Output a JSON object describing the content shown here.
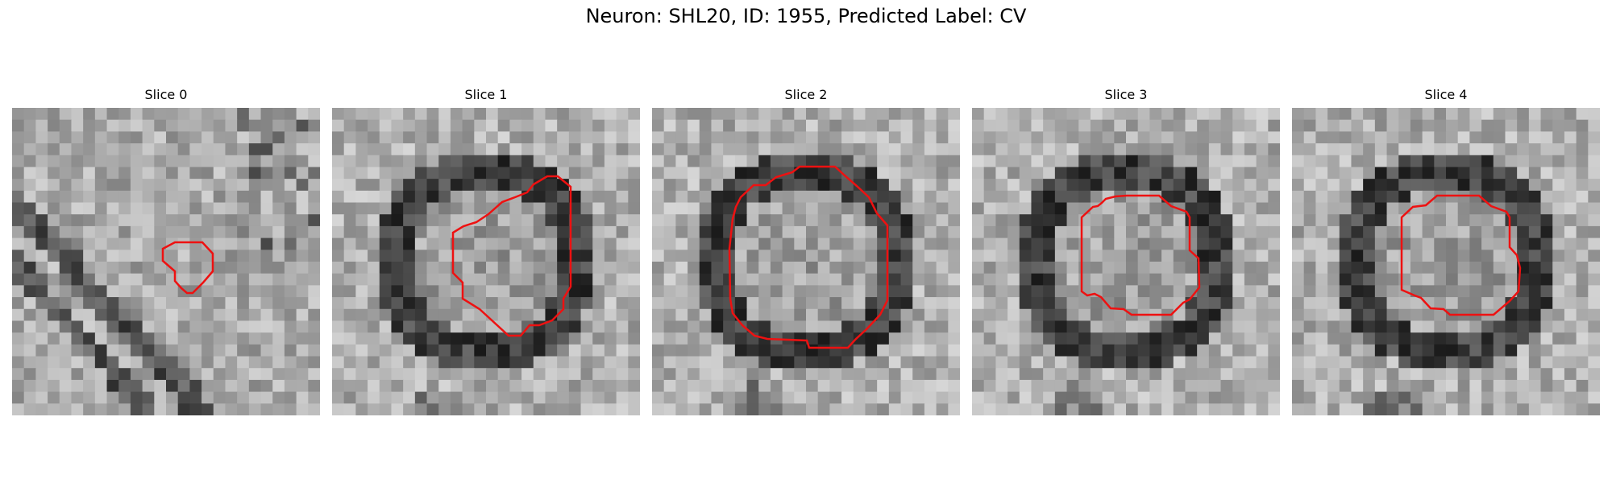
{
  "figure": {
    "title": "Neuron: SHL20, ID: 1955, Predicted Label: CV"
  },
  "panels": [
    {
      "title": "Slice 0",
      "seed": 11,
      "pattern": "diagonal"
    },
    {
      "title": "Slice 1",
      "seed": 23,
      "pattern": "ring"
    },
    {
      "title": "Slice 2",
      "seed": 37,
      "pattern": "ring"
    },
    {
      "title": "Slice 3",
      "seed": 51,
      "pattern": "ring"
    },
    {
      "title": "Slice 4",
      "seed": 67,
      "pattern": "ring"
    }
  ],
  "colors": {
    "contour": "#ee1111",
    "background": "#ffffff"
  }
}
